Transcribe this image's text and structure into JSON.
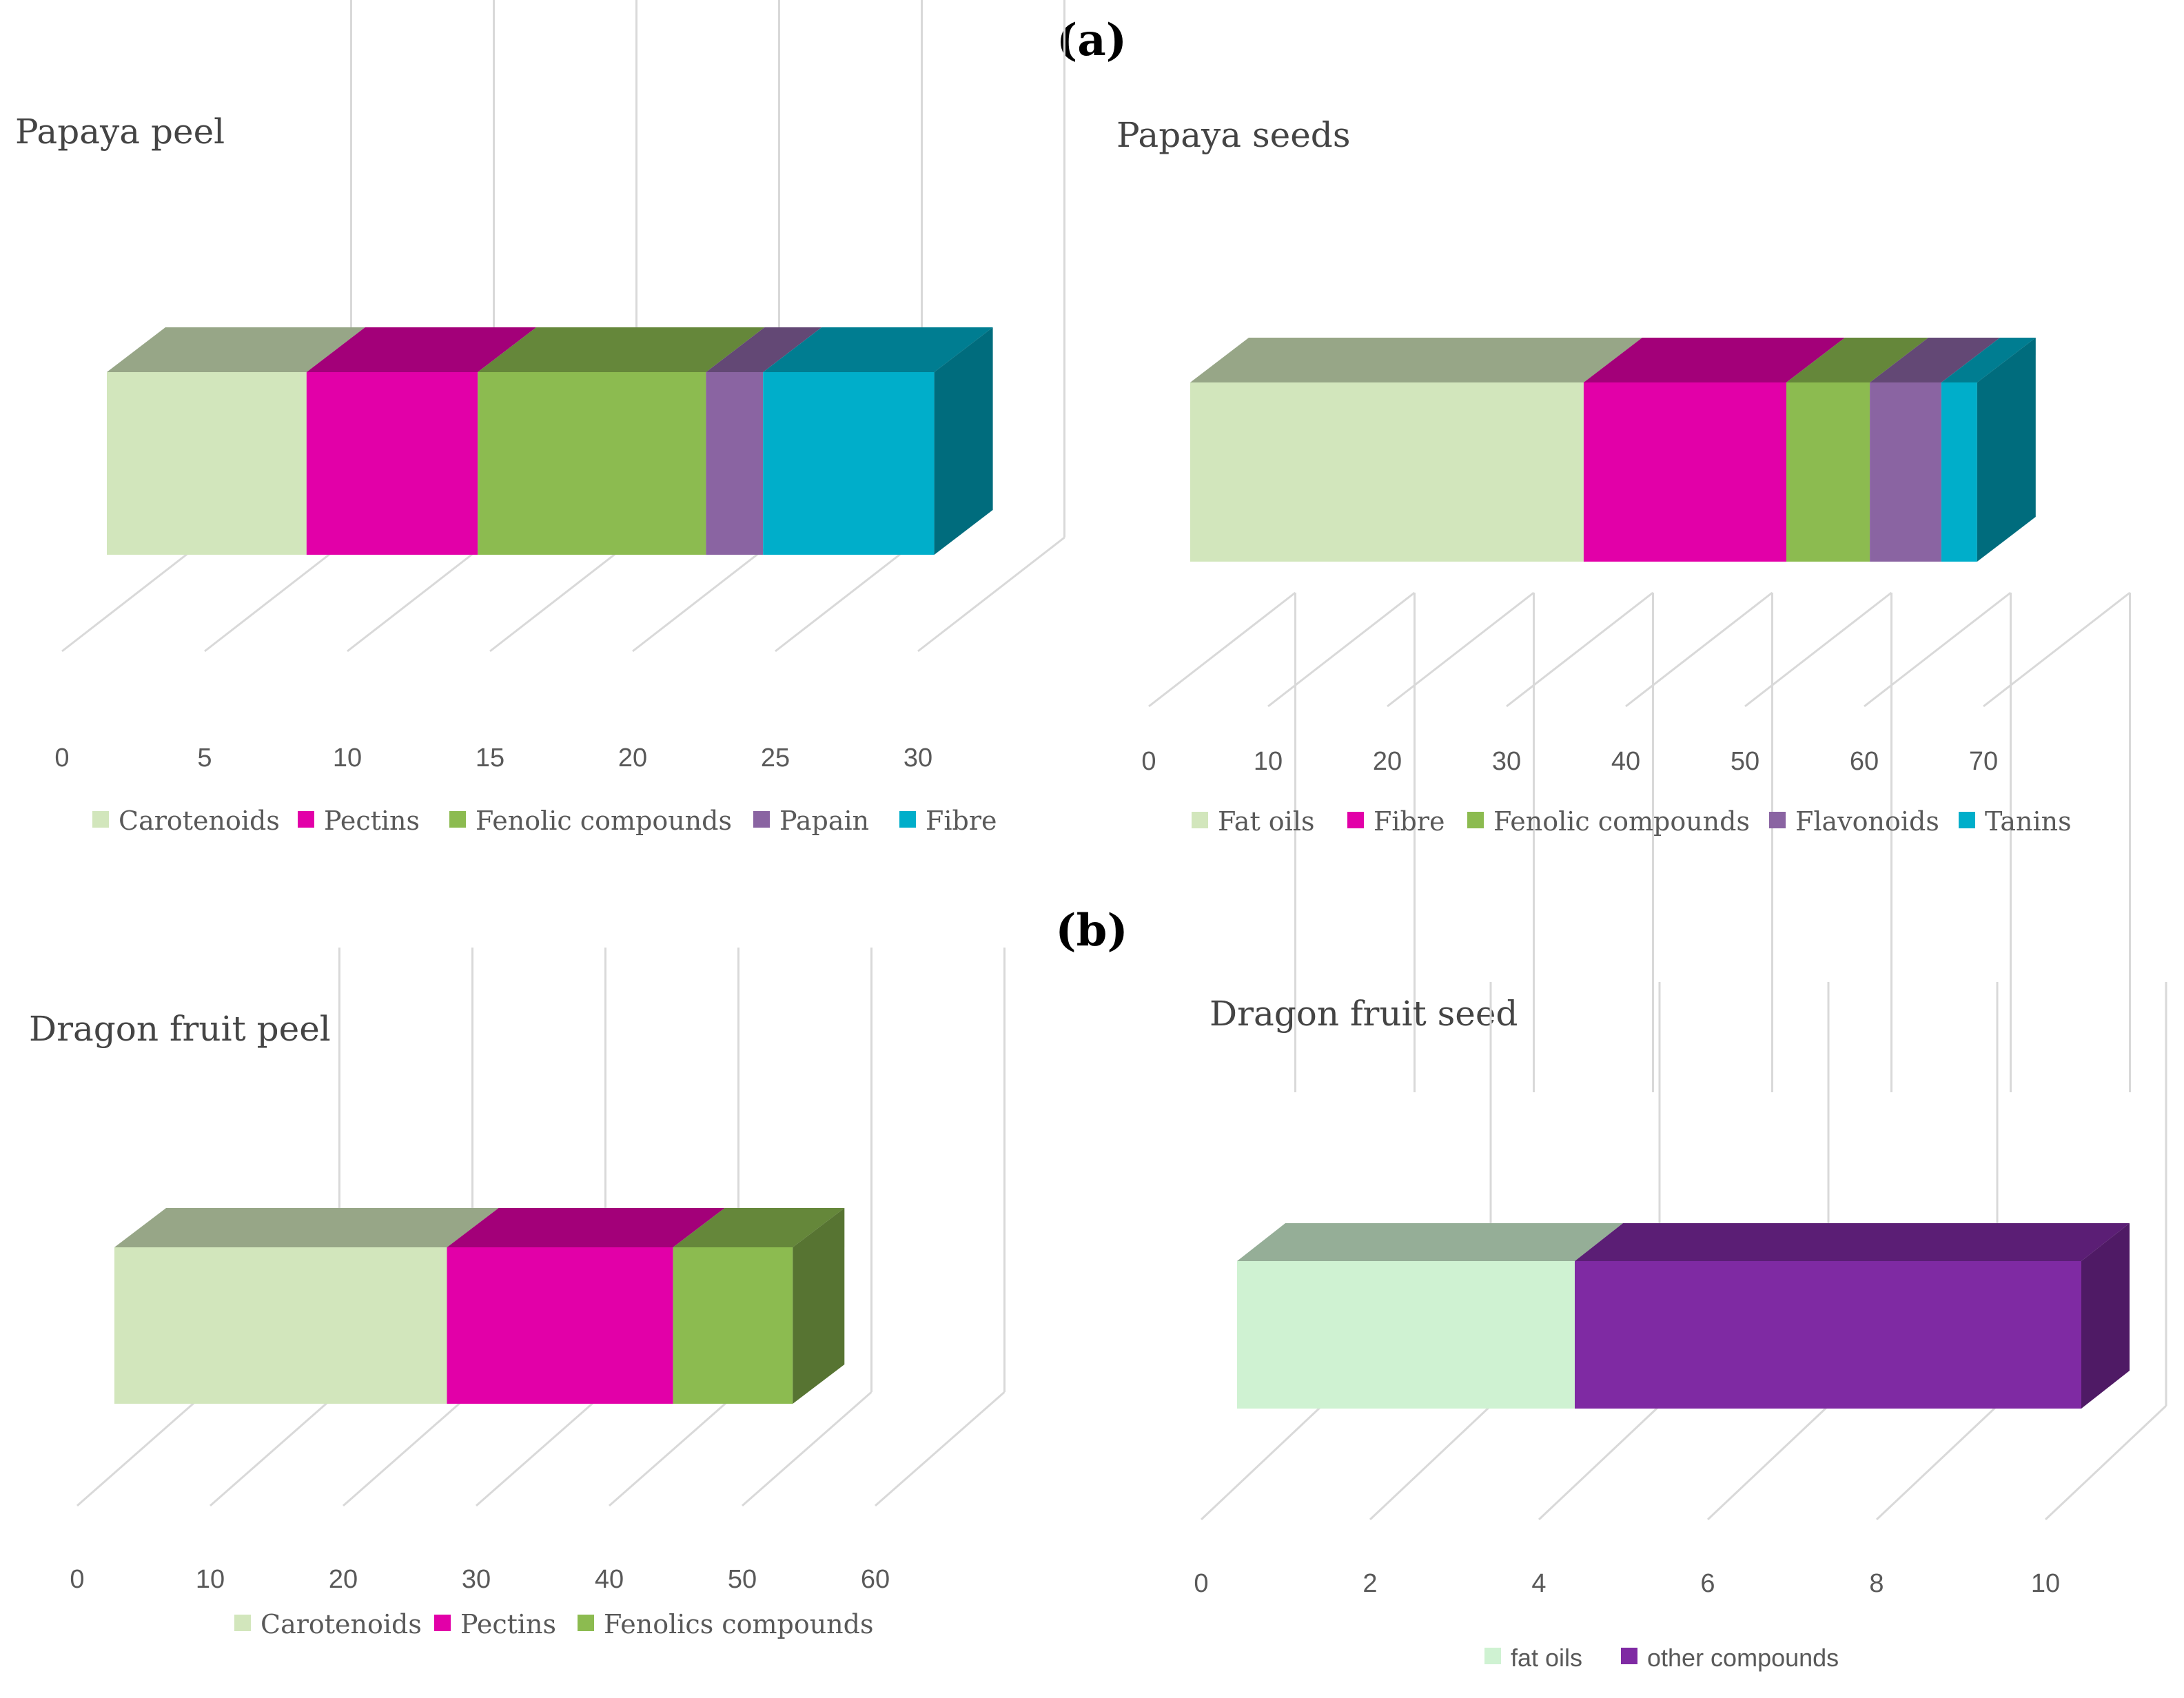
{
  "panels": {
    "a": "(a)",
    "b": "(b)"
  },
  "chart_data": [
    {
      "type": "bar",
      "orientation": "horizontal-stacked-3d",
      "title": "Papaya peel",
      "xlim": [
        0,
        30
      ],
      "xticks": [
        0,
        5,
        10,
        15,
        20,
        25,
        30
      ],
      "series": [
        {
          "name": "Carotenoids",
          "value": 7,
          "color": "#d2e6bc"
        },
        {
          "name": "Pectins",
          "value": 6,
          "color": "#e200a8"
        },
        {
          "name": "Fenolic compounds",
          "value": 8,
          "color": "#8cbb50"
        },
        {
          "name": "Papain",
          "value": 2,
          "color": "#8a64a2"
        },
        {
          "name": "Fibre",
          "value": 6,
          "color": "#00aeca"
        }
      ],
      "legend_font": "serif"
    },
    {
      "type": "bar",
      "orientation": "horizontal-stacked-3d",
      "title": "Papaya seeds",
      "xlim": [
        0,
        70
      ],
      "xticks": [
        0,
        10,
        20,
        30,
        40,
        50,
        60,
        70
      ],
      "series": [
        {
          "name": "Fat oils",
          "value": 33,
          "color": "#d2e6bc"
        },
        {
          "name": "Fibre",
          "value": 17,
          "color": "#e200a8"
        },
        {
          "name": "Fenolic compounds",
          "value": 7,
          "color": "#8cbb50"
        },
        {
          "name": "Flavonoids",
          "value": 6,
          "color": "#8a64a2"
        },
        {
          "name": "Tanins",
          "value": 3,
          "color": "#00aeca"
        }
      ],
      "legend_font": "serif"
    },
    {
      "type": "bar",
      "orientation": "horizontal-stacked-3d",
      "title": "Dragon fruit peel",
      "xlim": [
        0,
        60
      ],
      "xticks": [
        0,
        10,
        20,
        30,
        40,
        50,
        60
      ],
      "series": [
        {
          "name": "Carotenoids",
          "value": 25,
          "color": "#d2e6bc"
        },
        {
          "name": "Pectins",
          "value": 17,
          "color": "#e200a8"
        },
        {
          "name": "Fenolics compounds",
          "value": 9,
          "color": "#8cbb50"
        }
      ],
      "legend_font": "serif"
    },
    {
      "type": "bar",
      "orientation": "horizontal-stacked-3d",
      "title": "Dragon fruit seed",
      "xlim": [
        0,
        10
      ],
      "xticks": [
        0,
        2,
        4,
        6,
        8,
        10
      ],
      "series": [
        {
          "name": "fat oils",
          "value": 4,
          "color": "#cff2d2"
        },
        {
          "name": "other compounds",
          "value": 6,
          "color": "#7f2aa3"
        }
      ],
      "legend_font": "sans"
    }
  ]
}
